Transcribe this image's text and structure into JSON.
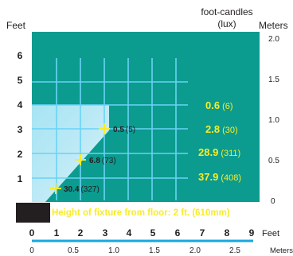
{
  "labels": {
    "feet_left": "Feet",
    "fc_line1": "foot-candles",
    "fc_line2": "(lux)",
    "meters_right": "Meters",
    "feet_bottom": "Feet",
    "meters_bottom": "Meters",
    "fixture_caption": "Height of fixture from floor: 2 ft. (610mm)"
  },
  "left_ticks": [
    "1",
    "2",
    "3",
    "4",
    "5",
    "6"
  ],
  "right_ticks": [
    "0",
    "0.5",
    "1.0",
    "1.5",
    "2.0"
  ],
  "bottom_feet_ticks": [
    "0",
    "1",
    "2",
    "3",
    "4",
    "5",
    "6",
    "7",
    "8",
    "9"
  ],
  "bottom_meter_ticks": [
    "0",
    "0.5",
    "1.0",
    "1.5",
    "2.0",
    "2.5"
  ],
  "spot_readings": [
    {
      "fc": "0.5",
      "lux": "(5)"
    },
    {
      "fc": "6.8",
      "lux": "(73)"
    },
    {
      "fc": "30.4",
      "lux": "(327)"
    }
  ],
  "legend_readings": [
    {
      "fc": "0.6",
      "lux": "(6)"
    },
    {
      "fc": "2.8",
      "lux": "(30)"
    },
    {
      "fc": "28.9",
      "lux": "(311)"
    },
    {
      "fc": "37.9",
      "lux": "(408)"
    }
  ],
  "colors": {
    "panel": "#0b9b8f",
    "grid": "#6ad3f5",
    "beam": "#8fdcef",
    "accent_yellow": "#f7ec2a",
    "fixture": "#231f20",
    "rule_blue": "#18a7df"
  }
}
